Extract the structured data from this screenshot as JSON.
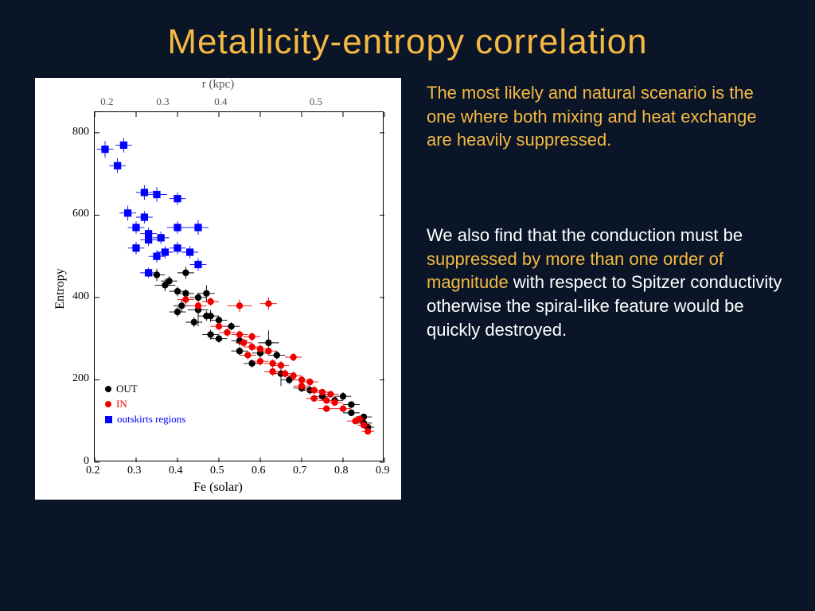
{
  "title": "Metallicity-entropy correlation",
  "paragraph1": "The most likely and natural scenario is the one where both mixing and heat exchange are heavily suppressed.",
  "paragraph2_pre": "We also find that the conduction must be ",
  "paragraph2_highlight": "suppressed by more than one order of magnitude",
  "paragraph2_post": " with respect to Spitzer conductivity otherwise  the spiral-like feature would be quickly destroyed.",
  "chart": {
    "type": "scatter",
    "background_color": "#ffffff",
    "ylabel": "Entropy",
    "xlabel_bottom": "Fe (solar)",
    "xlabel_top": "r (kpc)",
    "xlim": [
      0.2,
      0.9
    ],
    "ylim": [
      0,
      850
    ],
    "xticks": [
      0.2,
      0.3,
      0.4,
      0.5,
      0.6,
      0.7,
      0.8,
      0.9
    ],
    "yticks": [
      0,
      200,
      400,
      600,
      800
    ],
    "xticks_top": [
      0.2,
      0.3,
      0.4,
      0.5
    ],
    "xticks_top_positions": [
      0.235,
      0.37,
      0.51,
      0.74
    ],
    "tick_fontsize": 14,
    "label_fontsize": 16,
    "marker_size": 4.2,
    "errorbar_color_out": "#000000",
    "errorbar_color_in": "#ee0000",
    "errorbar_color_blue": "#0000ff",
    "legend": {
      "items": [
        {
          "label": "OUT",
          "color": "#000000",
          "shape": "circle"
        },
        {
          "label": "IN",
          "color": "#ee0000",
          "shape": "circle"
        },
        {
          "label": "outskirts regions",
          "color": "#0000ff",
          "shape": "square"
        }
      ]
    },
    "series_out": {
      "color": "#000000",
      "shape": "circle",
      "points": [
        [
          0.35,
          455,
          0.02,
          15
        ],
        [
          0.38,
          440,
          0.02,
          12
        ],
        [
          0.37,
          430,
          0.025,
          15
        ],
        [
          0.42,
          460,
          0.02,
          15
        ],
        [
          0.4,
          415,
          0.02,
          12
        ],
        [
          0.42,
          410,
          0.02,
          10
        ],
        [
          0.45,
          400,
          0.02,
          12
        ],
        [
          0.47,
          410,
          0.02,
          20
        ],
        [
          0.41,
          380,
          0.02,
          15
        ],
        [
          0.4,
          365,
          0.02,
          12
        ],
        [
          0.45,
          370,
          0.025,
          40
        ],
        [
          0.47,
          355,
          0.02,
          12
        ],
        [
          0.44,
          340,
          0.02,
          12
        ],
        [
          0.48,
          355,
          0.02,
          15
        ],
        [
          0.5,
          345,
          0.02,
          10
        ],
        [
          0.53,
          330,
          0.02,
          10
        ],
        [
          0.48,
          310,
          0.02,
          12
        ],
        [
          0.5,
          300,
          0.02,
          10
        ],
        [
          0.55,
          295,
          0.02,
          12
        ],
        [
          0.62,
          290,
          0.025,
          30
        ],
        [
          0.55,
          270,
          0.02,
          10
        ],
        [
          0.6,
          265,
          0.02,
          12
        ],
        [
          0.64,
          260,
          0.02,
          10
        ],
        [
          0.58,
          240,
          0.02,
          10
        ],
        [
          0.65,
          215,
          0.02,
          30
        ],
        [
          0.67,
          200,
          0.02,
          10
        ],
        [
          0.7,
          180,
          0.02,
          10
        ],
        [
          0.72,
          175,
          0.02,
          10
        ],
        [
          0.75,
          160,
          0.02,
          10
        ],
        [
          0.78,
          150,
          0.02,
          10
        ],
        [
          0.8,
          160,
          0.02,
          10
        ],
        [
          0.82,
          120,
          0.02,
          8
        ],
        [
          0.85,
          95,
          0.02,
          8
        ],
        [
          0.85,
          110,
          0.02,
          8
        ],
        [
          0.86,
          85,
          0.015,
          8
        ],
        [
          0.82,
          140,
          0.02,
          8
        ]
      ]
    },
    "series_in": {
      "color": "#ee0000",
      "shape": "circle",
      "points": [
        [
          0.42,
          395,
          0.02,
          12
        ],
        [
          0.45,
          380,
          0.02,
          12
        ],
        [
          0.48,
          390,
          0.02,
          10
        ],
        [
          0.55,
          380,
          0.03,
          15
        ],
        [
          0.62,
          385,
          0.02,
          15
        ],
        [
          0.5,
          330,
          0.02,
          10
        ],
        [
          0.52,
          315,
          0.02,
          10
        ],
        [
          0.55,
          310,
          0.02,
          10
        ],
        [
          0.58,
          305,
          0.02,
          10
        ],
        [
          0.56,
          290,
          0.02,
          10
        ],
        [
          0.58,
          280,
          0.02,
          10
        ],
        [
          0.6,
          275,
          0.02,
          10
        ],
        [
          0.62,
          270,
          0.02,
          10
        ],
        [
          0.57,
          260,
          0.02,
          10
        ],
        [
          0.6,
          245,
          0.02,
          10
        ],
        [
          0.63,
          240,
          0.02,
          10
        ],
        [
          0.65,
          235,
          0.02,
          10
        ],
        [
          0.68,
          255,
          0.02,
          10
        ],
        [
          0.63,
          220,
          0.02,
          10
        ],
        [
          0.66,
          215,
          0.02,
          10
        ],
        [
          0.68,
          210,
          0.02,
          10
        ],
        [
          0.7,
          200,
          0.02,
          10
        ],
        [
          0.72,
          195,
          0.02,
          10
        ],
        [
          0.7,
          185,
          0.02,
          10
        ],
        [
          0.73,
          175,
          0.02,
          10
        ],
        [
          0.75,
          170,
          0.02,
          8
        ],
        [
          0.77,
          165,
          0.02,
          8
        ],
        [
          0.73,
          155,
          0.02,
          8
        ],
        [
          0.76,
          150,
          0.02,
          8
        ],
        [
          0.78,
          145,
          0.02,
          8
        ],
        [
          0.8,
          130,
          0.02,
          8
        ],
        [
          0.76,
          130,
          0.02,
          8
        ],
        [
          0.83,
          100,
          0.02,
          8
        ],
        [
          0.85,
          90,
          0.015,
          8
        ],
        [
          0.84,
          105,
          0.015,
          8
        ],
        [
          0.86,
          75,
          0.015,
          8
        ]
      ]
    },
    "series_blue": {
      "color": "#0000ff",
      "shape": "square",
      "points": [
        [
          0.225,
          760,
          0.02,
          20
        ],
        [
          0.27,
          770,
          0.02,
          18
        ],
        [
          0.255,
          720,
          0.02,
          18
        ],
        [
          0.32,
          655,
          0.02,
          18
        ],
        [
          0.35,
          650,
          0.025,
          18
        ],
        [
          0.4,
          640,
          0.02,
          15
        ],
        [
          0.28,
          605,
          0.02,
          18
        ],
        [
          0.32,
          595,
          0.02,
          15
        ],
        [
          0.3,
          570,
          0.02,
          15
        ],
        [
          0.33,
          555,
          0.02,
          15
        ],
        [
          0.36,
          545,
          0.02,
          15
        ],
        [
          0.4,
          570,
          0.025,
          15
        ],
        [
          0.45,
          570,
          0.025,
          18
        ],
        [
          0.3,
          520,
          0.02,
          15
        ],
        [
          0.33,
          540,
          0.02,
          15
        ],
        [
          0.35,
          500,
          0.02,
          15
        ],
        [
          0.37,
          510,
          0.02,
          15
        ],
        [
          0.4,
          520,
          0.02,
          15
        ],
        [
          0.43,
          510,
          0.02,
          15
        ],
        [
          0.45,
          480,
          0.02,
          15
        ],
        [
          0.33,
          460,
          0.02,
          12
        ]
      ]
    }
  }
}
